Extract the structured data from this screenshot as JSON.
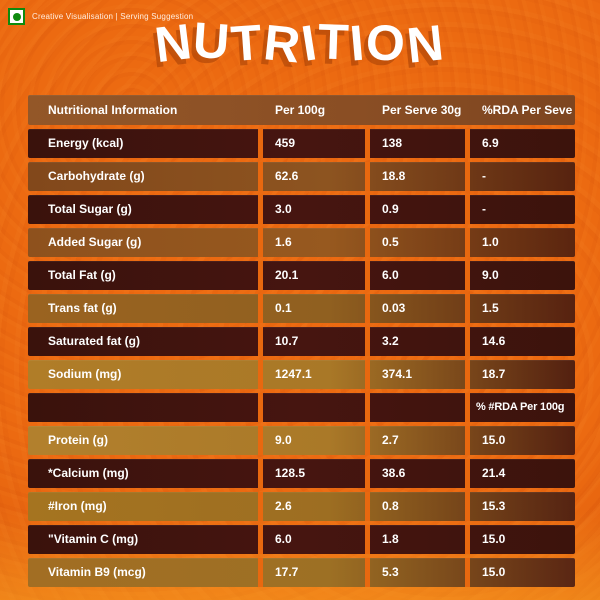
{
  "page": {
    "top_note": "Creative Visualisation | Serving Suggestion",
    "title": "NUTRITION"
  },
  "colors": {
    "background_orange": "#EC6A11",
    "header_row_brown": "#8C5126",
    "dark_row_maroon": "#3C120C",
    "light_row_gold": "#AA7928",
    "veg_symbol_green": "#0E8A0E",
    "text_white": "#FFFFFF"
  },
  "table": {
    "columns": [
      "Nutritional Information",
      "Per 100g",
      "Per Serve 30g",
      "%RDA Per Seve"
    ],
    "sub_header_note": "% #RDA Per 100g",
    "rows": [
      {
        "label": "Energy (kcal)",
        "per100": "459",
        "serve": "138",
        "rda": "6.9",
        "shade": "dark"
      },
      {
        "label": "Carbohydrate (g)",
        "per100": "62.6",
        "serve": "18.8",
        "rda": "-",
        "shade": "light"
      },
      {
        "label": "Total Sugar (g)",
        "per100": "3.0",
        "serve": "0.9",
        "rda": "-",
        "shade": "dark"
      },
      {
        "label": "Added Sugar (g)",
        "per100": "1.6",
        "serve": "0.5",
        "rda": "1.0",
        "shade": "light"
      },
      {
        "label": "Total Fat (g)",
        "per100": "20.1",
        "serve": "6.0",
        "rda": "9.0",
        "shade": "dark"
      },
      {
        "label": "Trans fat (g)",
        "per100": "0.1",
        "serve": "0.03",
        "rda": "1.5",
        "shade": "light"
      },
      {
        "label": "Saturated fat (g)",
        "per100": "10.7",
        "serve": "3.2",
        "rda": "14.6",
        "shade": "dark"
      },
      {
        "label": "Sodium (mg)",
        "per100": "1247.1",
        "serve": "374.1",
        "rda": "18.7",
        "shade": "light"
      },
      {
        "label": "",
        "per100": "",
        "serve": "",
        "rda": "% #RDA Per 100g",
        "shade": "dark",
        "special": true
      },
      {
        "label": "Protein (g)",
        "per100": "9.0",
        "serve": "2.7",
        "rda": "15.0",
        "shade": "light"
      },
      {
        "label": "*Calcium (mg)",
        "per100": "128.5",
        "serve": "38.6",
        "rda": "21.4",
        "shade": "dark"
      },
      {
        "label": "#Iron (mg)",
        "per100": "2.6",
        "serve": "0.8",
        "rda": "15.3",
        "shade": "light"
      },
      {
        "label": "\"Vitamin C (mg)",
        "per100": "6.0",
        "serve": "1.8",
        "rda": "15.0",
        "shade": "dark"
      },
      {
        "label": "Vitamin B9 (mcg)",
        "per100": "17.7",
        "serve": "5.3",
        "rda": "15.0",
        "shade": "light"
      }
    ]
  }
}
